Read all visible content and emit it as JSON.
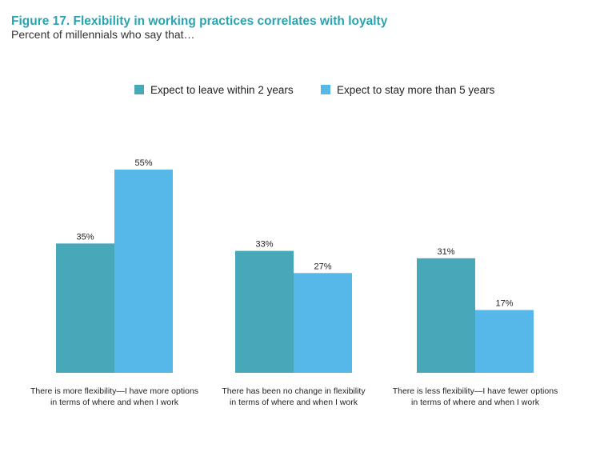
{
  "title": "Figure 17. Flexibility in working practices correlates with loyalty",
  "subtitle": "Percent of millennials who say that…",
  "chart_data": {
    "type": "bar",
    "categories": [
      [
        "There is more flexibility—I have more options",
        "in terms of where and when I work"
      ],
      [
        "There has been no change in flexibility",
        "in terms of where and when I work"
      ],
      [
        "There is less flexibility—I have fewer options",
        "in terms of where and when I work"
      ]
    ],
    "series": [
      {
        "name": "Expect to leave within 2 years",
        "color": "#46a8b8",
        "values": [
          35,
          33,
          31
        ],
        "labels": [
          "35%",
          "33%",
          "31%"
        ]
      },
      {
        "name": "Expect to stay more than 5 years",
        "color": "#55b8e8",
        "values": [
          55,
          27,
          17
        ],
        "labels": [
          "55%",
          "27%",
          "17%"
        ]
      }
    ],
    "ylim": [
      0,
      55
    ],
    "legend": "top-center"
  }
}
